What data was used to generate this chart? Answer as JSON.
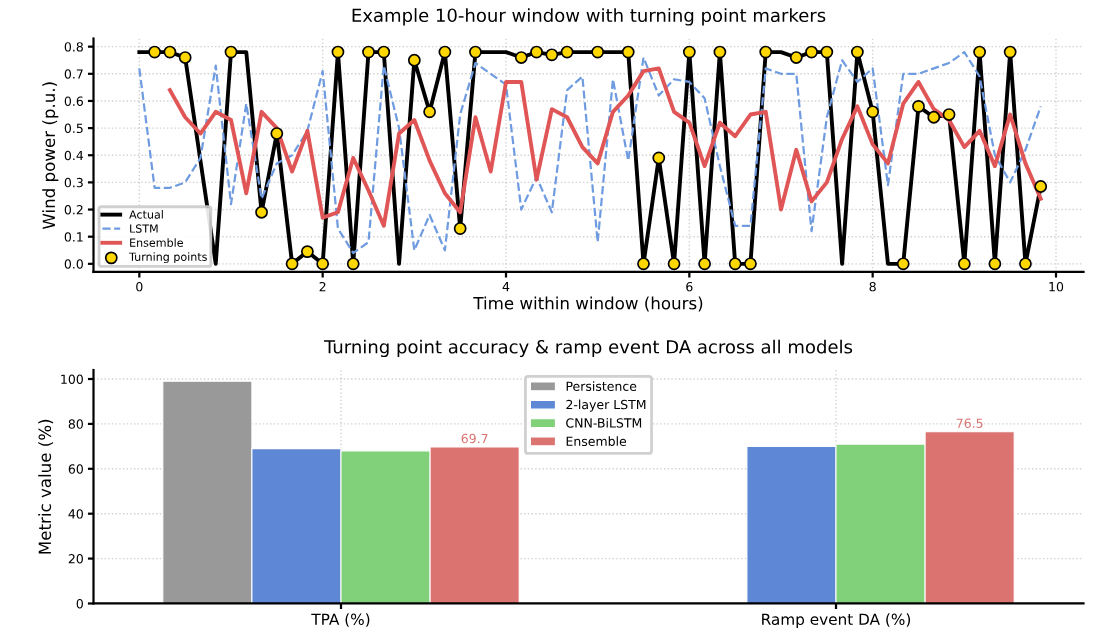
{
  "chart_data": [
    {
      "type": "line",
      "title": "Example 10-hour window with turning point markers",
      "xlabel": "Time within window (hours)",
      "ylabel": "Wind power (p.u.)",
      "x": [
        0,
        0.1667,
        0.3333,
        0.5,
        0.6667,
        0.8333,
        1,
        1.1667,
        1.3333,
        1.5,
        1.6667,
        1.8333,
        2,
        2.1667,
        2.3333,
        2.5,
        2.6667,
        2.8333,
        3,
        3.1667,
        3.3333,
        3.5,
        3.6667,
        3.8333,
        4,
        4.1667,
        4.3333,
        4.5,
        4.6667,
        4.8333,
        5,
        5.1667,
        5.3333,
        5.5,
        5.6667,
        5.8333,
        6,
        6.1667,
        6.3333,
        6.5,
        6.6667,
        6.8333,
        7,
        7.1667,
        7.3333,
        7.5,
        7.6667,
        7.8333,
        8,
        8.1667,
        8.3333,
        8.5,
        8.6667,
        8.8333,
        9,
        9.1667,
        9.3333,
        9.5,
        9.6667,
        9.8333
      ],
      "series": [
        {
          "name": "Actual",
          "color": "#000000",
          "line_style": "solid",
          "values": [
            0.78,
            0.78,
            0.78,
            0.76,
            0.38,
            0.0,
            0.78,
            0.78,
            0.19,
            0.48,
            0.0,
            0.045,
            0.0,
            0.78,
            0.0,
            0.78,
            0.78,
            0.0,
            0.75,
            0.56,
            0.78,
            0.13,
            0.78,
            0.78,
            0.78,
            0.76,
            0.78,
            0.77,
            0.78,
            0.78,
            0.78,
            0.78,
            0.78,
            0.0,
            0.39,
            0.0,
            0.78,
            0.0,
            0.78,
            0.0,
            0.0,
            0.78,
            0.78,
            0.76,
            0.78,
            0.78,
            0.0,
            0.78,
            0.56,
            0.0,
            0.0,
            0.58,
            0.54,
            0.55,
            0.0,
            0.78,
            0.0,
            0.78,
            0.0,
            0.285
          ]
        },
        {
          "name": "LSTM",
          "color": "#6f9be0",
          "line_style": "dashed",
          "values": [
            0.72,
            0.28,
            0.28,
            0.3,
            0.39,
            0.73,
            0.22,
            0.59,
            0.24,
            0.37,
            0.4,
            0.49,
            0.71,
            0.13,
            0.04,
            0.08,
            0.73,
            0.5,
            0.05,
            0.18,
            0.05,
            0.55,
            0.74,
            0.7,
            0.66,
            0.2,
            0.32,
            0.19,
            0.64,
            0.69,
            0.08,
            0.68,
            0.38,
            0.76,
            0.62,
            0.68,
            0.67,
            0.61,
            0.36,
            0.14,
            0.14,
            0.72,
            0.7,
            0.7,
            0.12,
            0.54,
            0.75,
            0.67,
            0.72,
            0.29,
            0.7,
            0.7,
            0.72,
            0.74,
            0.78,
            0.69,
            0.4,
            0.3,
            0.42,
            0.58
          ]
        },
        {
          "name": "Ensemble",
          "color": "#e05555",
          "line_style": "solid",
          "values": [
            null,
            null,
            0.64,
            0.54,
            0.48,
            0.56,
            0.53,
            0.26,
            0.56,
            0.5,
            0.34,
            0.49,
            0.17,
            0.19,
            0.39,
            0.27,
            0.14,
            0.48,
            0.53,
            0.38,
            0.26,
            0.19,
            0.54,
            0.34,
            0.67,
            0.67,
            0.31,
            0.57,
            0.54,
            0.43,
            0.37,
            0.56,
            0.62,
            0.71,
            0.72,
            0.56,
            0.52,
            0.36,
            0.52,
            0.47,
            0.55,
            0.56,
            0.2,
            0.42,
            0.23,
            0.3,
            0.46,
            0.58,
            0.44,
            0.37,
            0.59,
            0.67,
            0.57,
            0.53,
            0.43,
            0.49,
            0.36,
            0.55,
            0.37,
            0.24
          ]
        },
        {
          "name": "Turning points",
          "type": "scatter",
          "color": "#ffd700",
          "marker": "circle",
          "x": [
            0.1667,
            0.3333,
            0.5,
            1,
            1.3333,
            1.5,
            1.6667,
            1.8333,
            2,
            2.1667,
            2.3333,
            2.5,
            2.6667,
            3,
            3.1667,
            3.3333,
            3.5,
            3.6667,
            4.1667,
            4.3333,
            4.5,
            4.6667,
            5,
            5.3333,
            5.5,
            5.6667,
            5.8333,
            6,
            6.1667,
            6.3333,
            6.5,
            6.6667,
            6.8333,
            7.1667,
            7.3333,
            7.5,
            7.8333,
            8,
            8.3333,
            8.5,
            8.6667,
            8.8333,
            9,
            9.1667,
            9.3333,
            9.5,
            9.6667,
            9.8333
          ],
          "values": [
            0.78,
            0.78,
            0.76,
            0.78,
            0.19,
            0.48,
            0.0,
            0.045,
            0.0,
            0.78,
            0.0,
            0.78,
            0.78,
            0.75,
            0.56,
            0.78,
            0.13,
            0.78,
            0.76,
            0.78,
            0.77,
            0.78,
            0.78,
            0.78,
            0.0,
            0.39,
            0.0,
            0.78,
            0.0,
            0.78,
            0.0,
            0.0,
            0.78,
            0.76,
            0.78,
            0.78,
            0.78,
            0.56,
            0.0,
            0.58,
            0.54,
            0.55,
            0.0,
            0.78,
            0.0,
            0.78,
            0.0,
            0.285
          ]
        }
      ],
      "xlim": [
        -0.5,
        10.3
      ],
      "xticks": [
        0,
        2,
        4,
        6,
        8,
        10
      ],
      "ylim": [
        -0.03,
        0.83
      ],
      "yticks": [
        {
          "value": 0,
          "label": "0.0"
        },
        0.1,
        0.2,
        0.3,
        0.4,
        0.5,
        0.6,
        0.7,
        0.8
      ],
      "grid": true,
      "legend": "bottom left"
    },
    {
      "type": "bar",
      "title": "Turning point accuracy & ramp event DA across all models",
      "ylabel": "Metric value (%)",
      "categories": [
        "TPA (%)",
        "Ramp event DA (%)"
      ],
      "series": [
        {
          "name": "Persistence",
          "color": "#999999",
          "values": [
            99,
            null
          ]
        },
        {
          "name": "2-layer LSTM",
          "color": "#5e88d6",
          "values": [
            69,
            70
          ]
        },
        {
          "name": "CNN-BiLSTM",
          "color": "#80d17a",
          "values": [
            68,
            71
          ]
        },
        {
          "name": "Ensemble",
          "color": "#db7371",
          "values": [
            69.7,
            76.5
          ],
          "value_labels": [
            "69.7",
            "76.5"
          ]
        }
      ],
      "ylim": [
        0,
        104
      ],
      "yticks": [
        0,
        20,
        40,
        60,
        80,
        100
      ],
      "grid": true,
      "legend": "top"
    }
  ]
}
